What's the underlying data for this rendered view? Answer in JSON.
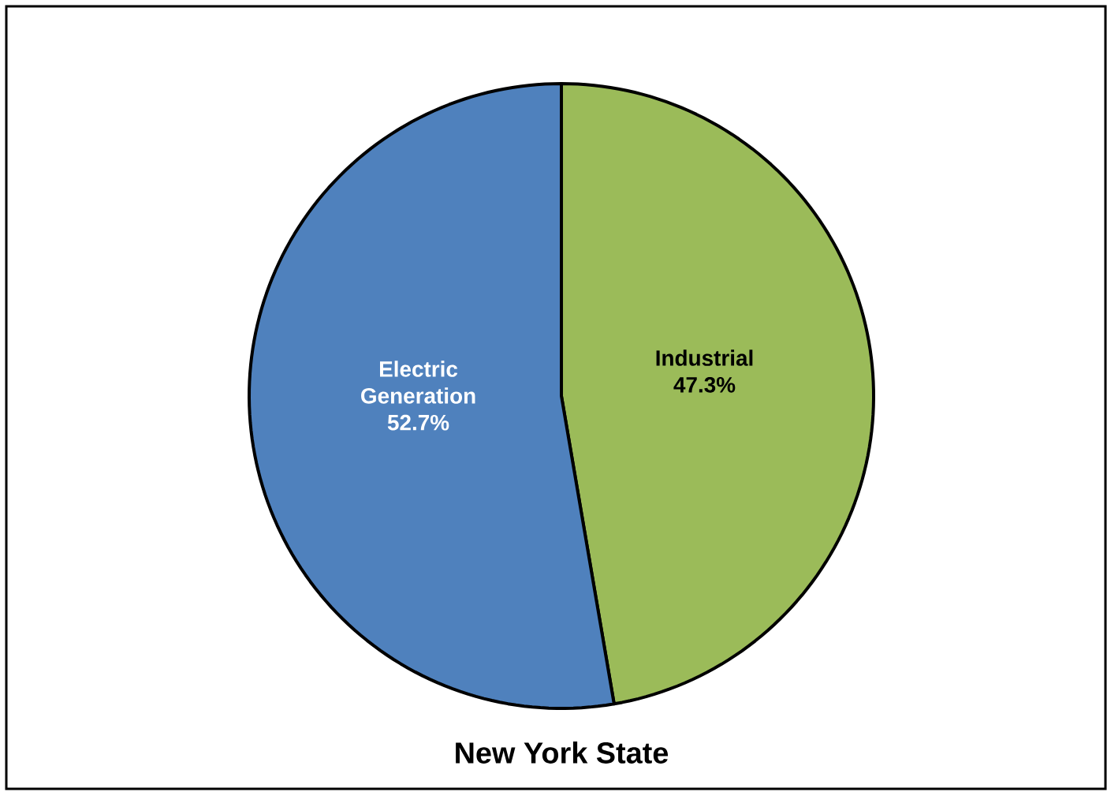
{
  "chart_data": {
    "type": "pie",
    "title": "New York State",
    "categories": [
      "Industrial",
      "Electric Generation"
    ],
    "values": [
      47.3,
      52.7
    ],
    "colors": [
      "#9bbb59",
      "#4f81bd"
    ],
    "value_labels": [
      "47.3%",
      "52.7%"
    ]
  }
}
